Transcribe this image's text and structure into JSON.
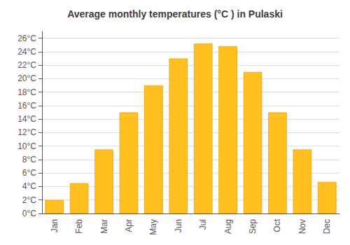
{
  "chart_data": {
    "type": "bar",
    "title": "Average monthly temperatures (°C ) in Pulaski",
    "categories": [
      "Jan",
      "Feb",
      "Mar",
      "Apr",
      "May",
      "Jun",
      "Jul",
      "Aug",
      "Sep",
      "Oct",
      "Nov",
      "Dec"
    ],
    "values": [
      2.0,
      4.5,
      9.5,
      15.0,
      19.0,
      23.0,
      25.2,
      24.8,
      21.0,
      15.0,
      9.5,
      4.7
    ],
    "color": "#FFC020",
    "ylim": [
      0,
      27
    ],
    "yticks": [
      {
        "value": 0,
        "label": "0°C"
      },
      {
        "value": 2,
        "label": "2°C"
      },
      {
        "value": 4,
        "label": "4°C"
      },
      {
        "value": 6,
        "label": "6°C"
      },
      {
        "value": 8,
        "label": "8°C"
      },
      {
        "value": 10,
        "label": "10°C"
      },
      {
        "value": 12,
        "label": "12°C"
      },
      {
        "value": 14,
        "label": "14°C"
      },
      {
        "value": 16,
        "label": "16°C"
      },
      {
        "value": 18,
        "label": "18°C"
      },
      {
        "value": 20,
        "label": "20°C"
      },
      {
        "value": 22,
        "label": "22°C"
      },
      {
        "value": 24,
        "label": "24°C"
      },
      {
        "value": 26,
        "label": "26°C"
      }
    ],
    "grid": true
  }
}
